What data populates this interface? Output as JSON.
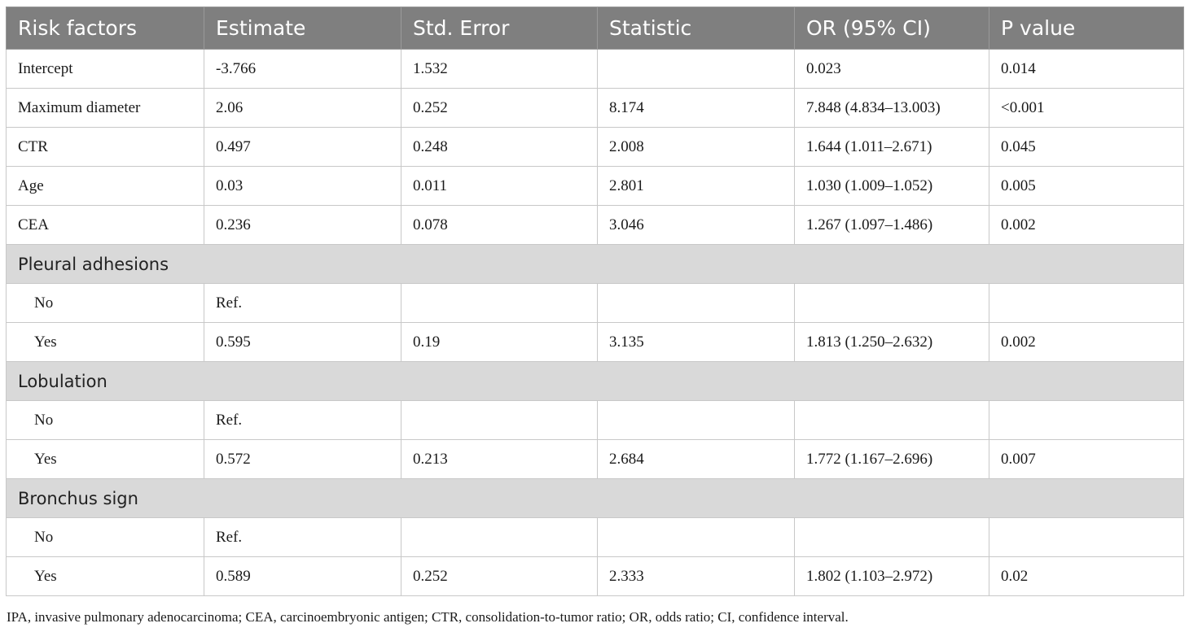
{
  "table": {
    "headers": [
      "Risk factors",
      "Estimate",
      "Std. Error",
      "Statistic",
      "OR (95% CI)",
      "P value"
    ],
    "rows": [
      {
        "cells": [
          "Intercept",
          "-3.766",
          "1.532",
          "",
          "0.023",
          "0.014"
        ]
      },
      {
        "cells": [
          "Maximum diameter",
          "2.06",
          "0.252",
          "8.174",
          "7.848 (4.834–13.003)",
          "<0.001"
        ]
      },
      {
        "cells": [
          "CTR",
          "0.497",
          "0.248",
          "2.008",
          "1.644 (1.011–2.671)",
          "0.045"
        ]
      },
      {
        "cells": [
          "Age",
          "0.03",
          "0.011",
          "2.801",
          "1.030 (1.009–1.052)",
          "0.005"
        ]
      },
      {
        "cells": [
          "CEA",
          "0.236",
          "0.078",
          "3.046",
          "1.267 (1.097–1.486)",
          "0.002"
        ]
      },
      {
        "section": "Pleural adhesions"
      },
      {
        "cells": [
          "No",
          "Ref.",
          "",
          "",
          "",
          ""
        ],
        "indent": true
      },
      {
        "cells": [
          "Yes",
          "0.595",
          "0.19",
          "3.135",
          "1.813 (1.250–2.632)",
          "0.002"
        ],
        "indent": true
      },
      {
        "section": "Lobulation"
      },
      {
        "cells": [
          "No",
          "Ref.",
          "",
          "",
          "",
          ""
        ],
        "indent": true
      },
      {
        "cells": [
          "Yes",
          "0.572",
          "0.213",
          "2.684",
          "1.772 (1.167–2.696)",
          "0.007"
        ],
        "indent": true
      },
      {
        "section": "Bronchus sign"
      },
      {
        "cells": [
          "No",
          "Ref.",
          "",
          "",
          "",
          ""
        ],
        "indent": true
      },
      {
        "cells": [
          "Yes",
          "0.589",
          "0.252",
          "2.333",
          "1.802 (1.103–2.972)",
          "0.02"
        ],
        "indent": true
      }
    ]
  },
  "footnote": "IPA, invasive pulmonary adenocarcinoma; CEA, carcinoembryonic antigen; CTR, consolidation-to-tumor ratio; OR, odds ratio; CI, confidence interval.",
  "colors": {
    "header_bg": "#7f7f7f",
    "section_bg": "#d9d9d9"
  }
}
